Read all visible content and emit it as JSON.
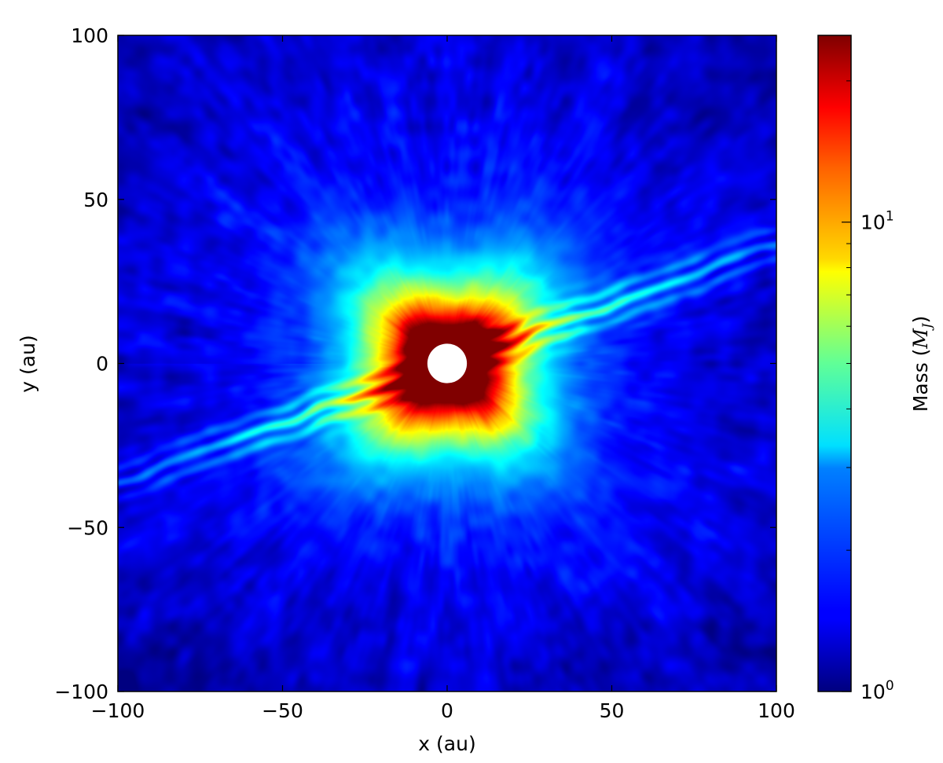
{
  "chart_data": {
    "type": "heatmap",
    "xlabel": "x (au)",
    "ylabel": "y (au)",
    "xlim": [
      -100,
      100
    ],
    "ylim": [
      -100,
      100
    ],
    "x_ticks": [
      {
        "value": -100,
        "label": "−100"
      },
      {
        "value": -50,
        "label": "−50"
      },
      {
        "value": 0,
        "label": "0"
      },
      {
        "value": 50,
        "label": "50"
      },
      {
        "value": 100,
        "label": "100"
      }
    ],
    "y_ticks": [
      {
        "value": -100,
        "label": "−100"
      },
      {
        "value": -50,
        "label": "−50"
      },
      {
        "value": 0,
        "label": "0"
      },
      {
        "value": 50,
        "label": "50"
      },
      {
        "value": 100,
        "label": "100"
      }
    ],
    "colorbar": {
      "label_text": "Mass (",
      "label_math": "M",
      "label_sub": "J",
      "label_close": ")",
      "scale": "log",
      "colormap": "jet",
      "range": [
        1,
        25
      ],
      "major_ticks": [
        {
          "value": 1,
          "base": "10",
          "exp": "0"
        },
        {
          "value": 10,
          "base": "10",
          "exp": "1"
        }
      ],
      "minor_ticks": [
        2,
        3,
        4,
        5,
        6,
        7,
        8,
        9,
        20
      ]
    },
    "features": {
      "central_hole_radius_au": 6,
      "core_peak_mass": 25,
      "background_mass": 1.5,
      "streak_angle_deg": 20
    }
  }
}
